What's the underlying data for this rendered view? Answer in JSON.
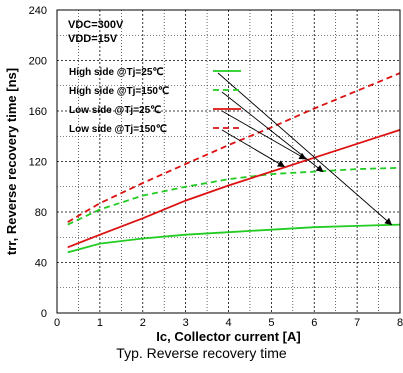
{
  "chart_data": {
    "type": "line",
    "caption": "Typ. Reverse recovery time",
    "xlabel": "Ic, Collector current [A]",
    "ylabel": "trr, Reverse recovery time [ns]",
    "xlim": [
      0,
      8
    ],
    "ylim": [
      0,
      240
    ],
    "xticks": [
      0,
      1,
      2,
      3,
      4,
      5,
      6,
      7,
      8
    ],
    "yticks": [
      0,
      40,
      80,
      120,
      160,
      200,
      240
    ],
    "grid": true,
    "conditions": [
      "VDC=300V",
      "VDD=15V"
    ],
    "legend_position": "top-left",
    "series": [
      {
        "name": "High side @Tj=25℃",
        "color": "#22cc22",
        "dash": "solid",
        "x": [
          0.25,
          1,
          2,
          3,
          4,
          5,
          6,
          7,
          8
        ],
        "y": [
          48,
          55,
          59,
          62,
          64,
          66,
          68,
          69,
          70
        ]
      },
      {
        "name": "High side @Tj=150℃",
        "color": "#22cc22",
        "dash": "dashed",
        "x": [
          0.25,
          1,
          2,
          3,
          4,
          5,
          6,
          7,
          8
        ],
        "y": [
          70,
          82,
          93,
          100,
          106,
          110,
          112,
          114,
          115
        ]
      },
      {
        "name": "Low side @Tj=25℃",
        "color": "#dd1111",
        "dash": "solid",
        "x": [
          0.25,
          1,
          2,
          3,
          4,
          5,
          6,
          7,
          8
        ],
        "y": [
          52,
          62,
          75,
          89,
          101,
          112,
          123,
          134,
          145
        ]
      },
      {
        "name": "Low side @Tj=150℃",
        "color": "#dd1111",
        "dash": "dashed",
        "x": [
          0.25,
          1,
          2,
          3,
          4,
          5,
          6,
          7,
          8
        ],
        "y": [
          72,
          87,
          103,
          118,
          133,
          147,
          162,
          176,
          190
        ]
      }
    ],
    "legend_arrow_targets": [
      {
        "x": 7.8,
        "y": 70
      },
      {
        "x": 6.2,
        "y": 112
      },
      {
        "x": 5.8,
        "y": 122
      },
      {
        "x": 5.3,
        "y": 116
      }
    ]
  }
}
